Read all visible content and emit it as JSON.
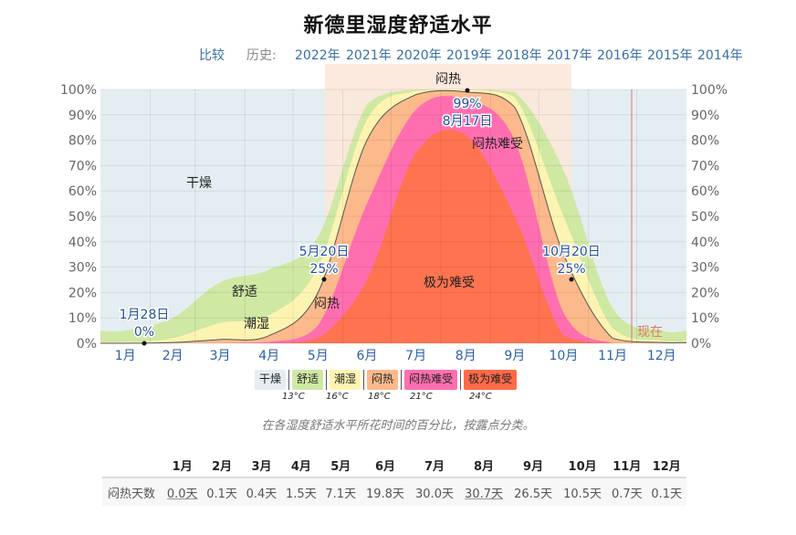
{
  "title": "新德里湿度舒适水平",
  "nav": {
    "compare": "比较",
    "history_label": "历史:",
    "years": [
      "2022年",
      "2021年",
      "2020年",
      "2019年",
      "2018年",
      "2017年",
      "2016年",
      "2015年",
      "2014年"
    ]
  },
  "chart_data": {
    "type": "area",
    "title": "新德里湿度舒适水平",
    "xlabel": "",
    "ylabel": "",
    "ylim": [
      0,
      100
    ],
    "y_ticks": [
      "0%",
      "10%",
      "20%",
      "30%",
      "40%",
      "50%",
      "60%",
      "70%",
      "80%",
      "90%",
      "100%"
    ],
    "categories": [
      "1月",
      "2月",
      "3月",
      "4月",
      "5月",
      "6月",
      "7月",
      "8月",
      "9月",
      "10月",
      "11月",
      "12月"
    ],
    "stacked": true,
    "series_cumulative_note": "values are cumulative top edges (% of time) sampled mid-month, stacked from bottom: 极为难受 → 闷热难受 → 闷热 → 潮湿 → 舒适 → 干燥(remaining)",
    "series": [
      {
        "name": "极为难受",
        "color": "#ff7350",
        "values": [
          0,
          0,
          0,
          0,
          2,
          25,
          75,
          82,
          50,
          3,
          0,
          0
        ]
      },
      {
        "name": "闷热难受",
        "color": "#ff6fb0",
        "values": [
          0,
          0,
          0,
          0.5,
          7,
          55,
          92,
          96,
          80,
          12,
          0,
          0
        ]
      },
      {
        "name": "闷热",
        "color": "#fcb98c",
        "values": [
          0,
          0.3,
          1.5,
          3,
          20,
          80,
          98,
          99,
          93,
          35,
          2,
          0.3
        ]
      },
      {
        "name": "潮湿",
        "color": "#fdf4b2",
        "values": [
          0.5,
          2,
          8,
          11,
          30,
          88,
          99.5,
          100,
          97,
          50,
          6,
          1
        ]
      },
      {
        "name": "舒适",
        "color": "#cfe8a4",
        "values": [
          5,
          10,
          24,
          29,
          42,
          94,
          100,
          100,
          99,
          68,
          14,
          5
        ]
      },
      {
        "name": "干燥",
        "color": "#e4eef2",
        "values": [
          100,
          100,
          100,
          100,
          100,
          100,
          100,
          100,
          100,
          100,
          100,
          100
        ]
      }
    ],
    "annotations": [
      {
        "label": "1月28日",
        "value": "0%"
      },
      {
        "label": "5月20日",
        "value": "25%"
      },
      {
        "label": "8月17日",
        "value": "99%"
      },
      {
        "label": "10月20日",
        "value": "25%"
      }
    ],
    "band_labels": [
      "干燥",
      "舒适",
      "潮湿",
      "闷热",
      "闷热难受",
      "极为难受"
    ],
    "highlight_label": "闷热",
    "now_label": "现在",
    "legend_position": "bottom"
  },
  "annotations": {
    "jan": {
      "date": "1月28日",
      "pct": "0%"
    },
    "may": {
      "date": "5月20日",
      "pct": "25%"
    },
    "aug": {
      "date": "8月17日",
      "pct": "99%"
    },
    "oct": {
      "date": "10月20日",
      "pct": "25%"
    }
  },
  "band_labels": {
    "dry": "干燥",
    "comfortable": "舒适",
    "humid": "潮湿",
    "muggy": "闷热",
    "oppressive": "闷热难受",
    "miserable": "极为难受",
    "highlight": "闷热",
    "now": "现在"
  },
  "legend": {
    "items": [
      {
        "label": "干燥",
        "color": "#e4eef2"
      },
      {
        "label": "舒适",
        "color": "#cfe8a4"
      },
      {
        "label": "潮湿",
        "color": "#fdf4b2"
      },
      {
        "label": "闷热",
        "color": "#fcb98c"
      },
      {
        "label": "闷热难受",
        "color": "#ff6fb0"
      },
      {
        "label": "极为难受",
        "color": "#ff7350"
      }
    ],
    "thresholds": [
      "13°C",
      "16°C",
      "18°C",
      "21°C",
      "24°C"
    ]
  },
  "caption": "在各湿度舒适水平所花时间的百分比，按露点分类。",
  "table": {
    "row_label": "闷热天数",
    "months": [
      "1月",
      "2月",
      "3月",
      "4月",
      "5月",
      "6月",
      "7月",
      "8月",
      "9月",
      "10月",
      "11月",
      "12月"
    ],
    "values": [
      "0.0天",
      "0.1天",
      "0.4天",
      "1.5天",
      "7.1天",
      "19.8天",
      "30.0天",
      "30.7天",
      "26.5天",
      "10.5天",
      "0.7天",
      "0.1天"
    ]
  }
}
